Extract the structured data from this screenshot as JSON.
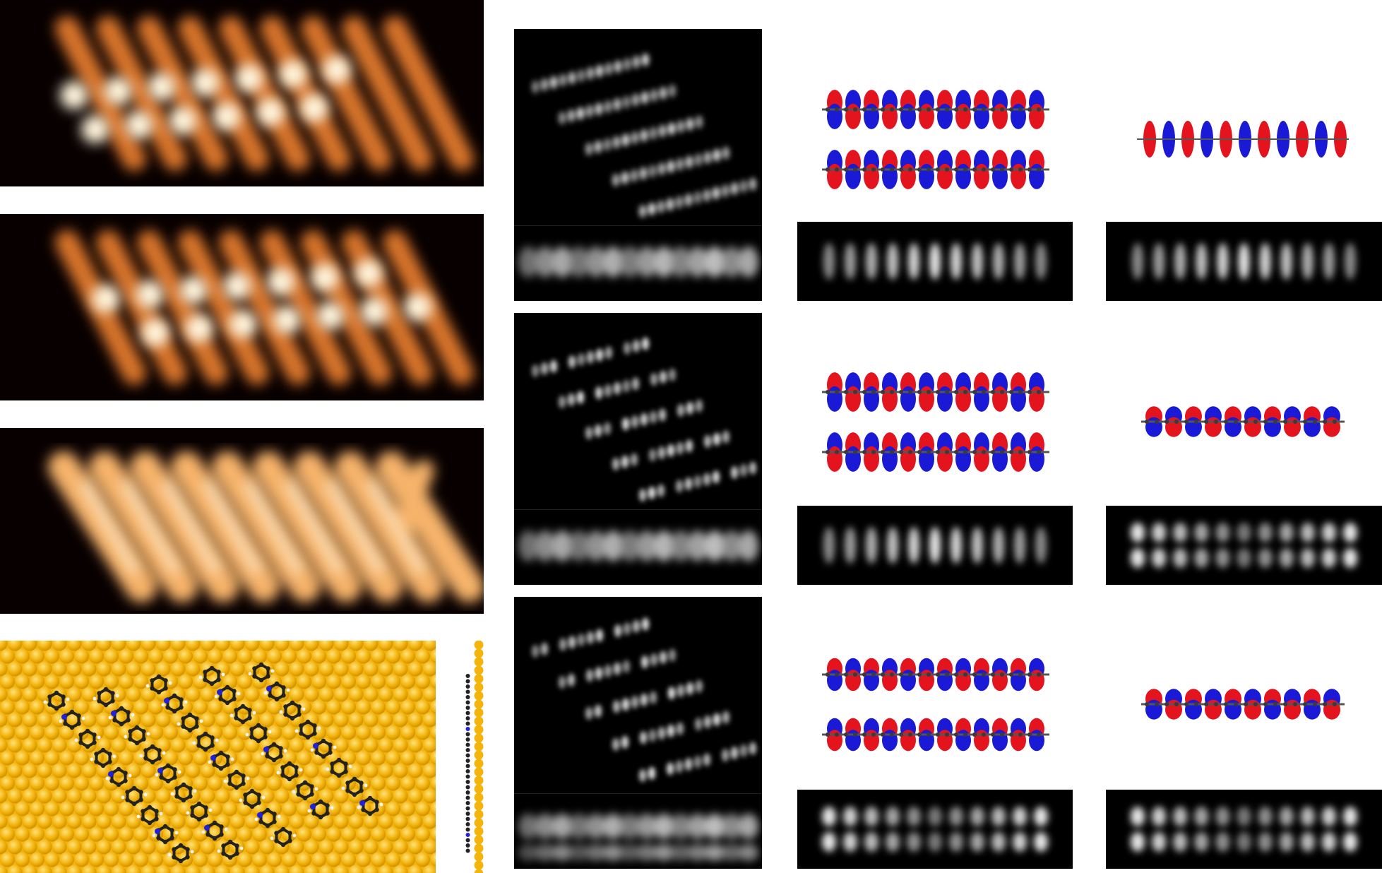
{
  "figure": {
    "description_none": "",
    "colors": {
      "stm_bright": "#fff6e0",
      "stm_mid": "#f0a04a",
      "stm_dark": "#7a2a00",
      "background_dark": "#000000",
      "gold": "#f3b40c",
      "orbital_positive": "#e3141e",
      "orbital_negative": "#1a1ad6",
      "carbon": "#222222",
      "nitrogen": "#2020e0",
      "hydrogen": "#f2f2f2"
    },
    "panels": {
      "stm_images": [
        "stm-image-1",
        "stm-image-2",
        "stm-image-3"
      ],
      "structural_model": [
        "model-top-view",
        "model-side-view"
      ],
      "simulated_stm": [
        "sim-stm-1",
        "sim-stm-2",
        "sim-stm-3"
      ],
      "orbitals_pair": [
        "orbital-pair-1",
        "orbital-pair-2",
        "orbital-pair-3"
      ],
      "orbitals_single": [
        "orbital-single-1",
        "orbital-single-2",
        "orbital-single-3"
      ]
    }
  }
}
